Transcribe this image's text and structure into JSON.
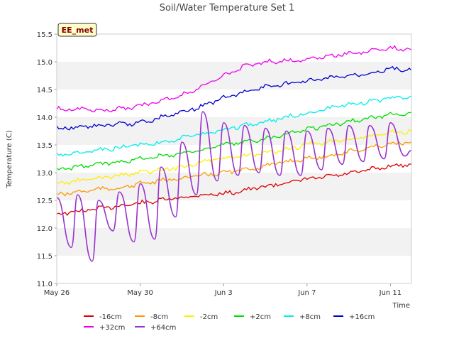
{
  "chart_data": {
    "type": "line",
    "title": "Soil/Water Temperature Set 1",
    "xlabel": "Time",
    "ylabel": "Temperature (C)",
    "ylim": [
      11.0,
      15.5
    ],
    "xlim_days": [
      "May 26",
      "Jun 13"
    ],
    "yticks": [
      11.0,
      11.5,
      12.0,
      12.5,
      13.0,
      13.5,
      14.0,
      14.5,
      15.0,
      15.5
    ],
    "ytick_labels": [
      "11.0",
      "11.5",
      "12.0",
      "12.5",
      "13.0",
      "13.5",
      "14.0",
      "14.5",
      "15.0",
      "15.5"
    ],
    "xticks": [
      "May 26",
      "May 30",
      "Jun 3",
      "Jun 7",
      "Jun 11"
    ],
    "site_label": "EE_met",
    "grid": "horizontal bands",
    "legend_placement": "bottom",
    "series": [
      {
        "name": "-16cm",
        "color": "#dd0000",
        "x": [
          "May 26",
          "May 27",
          "May 28",
          "May 29",
          "May 30",
          "May 31",
          "Jun 1",
          "Jun 2",
          "Jun 3",
          "Jun 4",
          "Jun 5",
          "Jun 6",
          "Jun 7",
          "Jun 8",
          "Jun 9",
          "Jun 10",
          "Jun 11",
          "Jun 12"
        ],
        "values": [
          12.25,
          12.3,
          12.35,
          12.4,
          12.45,
          12.5,
          12.55,
          12.6,
          12.62,
          12.68,
          12.75,
          12.82,
          12.88,
          12.93,
          12.98,
          13.05,
          13.12,
          13.15
        ]
      },
      {
        "name": "-8cm",
        "color": "#ff9900",
        "x": [
          "May 26",
          "May 27",
          "May 28",
          "May 29",
          "May 30",
          "May 31",
          "Jun 1",
          "Jun 2",
          "Jun 3",
          "Jun 4",
          "Jun 5",
          "Jun 6",
          "Jun 7",
          "Jun 8",
          "Jun 9",
          "Jun 10",
          "Jun 11",
          "Jun 12"
        ],
        "values": [
          12.6,
          12.65,
          12.7,
          12.72,
          12.8,
          12.85,
          12.9,
          12.95,
          13.0,
          13.05,
          13.12,
          13.2,
          13.25,
          13.3,
          13.38,
          13.45,
          13.52,
          13.55
        ]
      },
      {
        "name": "-2cm",
        "color": "#ffee00",
        "x": [
          "May 26",
          "May 27",
          "May 28",
          "May 29",
          "May 30",
          "May 31",
          "Jun 1",
          "Jun 2",
          "Jun 3",
          "Jun 4",
          "Jun 5",
          "Jun 6",
          "Jun 7",
          "Jun 8",
          "Jun 9",
          "Jun 10",
          "Jun 11",
          "Jun 12"
        ],
        "values": [
          12.8,
          12.85,
          12.9,
          12.95,
          13.0,
          13.05,
          13.1,
          13.2,
          13.25,
          13.3,
          13.35,
          13.42,
          13.5,
          13.55,
          13.6,
          13.65,
          13.72,
          13.75
        ]
      },
      {
        "name": "+2cm",
        "color": "#00dd00",
        "x": [
          "May 26",
          "May 27",
          "May 28",
          "May 29",
          "May 30",
          "May 31",
          "Jun 1",
          "Jun 2",
          "Jun 3",
          "Jun 4",
          "Jun 5",
          "Jun 6",
          "Jun 7",
          "Jun 8",
          "Jun 9",
          "Jun 10",
          "Jun 11",
          "Jun 12"
        ],
        "values": [
          13.05,
          13.1,
          13.15,
          13.2,
          13.25,
          13.3,
          13.35,
          13.42,
          13.5,
          13.55,
          13.62,
          13.7,
          13.78,
          13.85,
          13.92,
          13.98,
          14.05,
          14.08
        ]
      },
      {
        "name": "+8cm",
        "color": "#00eeee",
        "x": [
          "May 26",
          "May 27",
          "May 28",
          "May 29",
          "May 30",
          "May 31",
          "Jun 1",
          "Jun 2",
          "Jun 3",
          "Jun 4",
          "Jun 5",
          "Jun 6",
          "Jun 7",
          "Jun 8",
          "Jun 9",
          "Jun 10",
          "Jun 11",
          "Jun 12"
        ],
        "values": [
          13.32,
          13.35,
          13.4,
          13.45,
          13.5,
          13.55,
          13.62,
          13.7,
          13.78,
          13.85,
          13.92,
          14.0,
          14.08,
          14.15,
          14.22,
          14.28,
          14.35,
          14.38
        ]
      },
      {
        "name": "+16cm",
        "color": "#0000cc",
        "x": [
          "May 26",
          "May 27",
          "May 28",
          "May 29",
          "May 30",
          "May 31",
          "Jun 1",
          "Jun 2",
          "Jun 3",
          "Jun 4",
          "Jun 5",
          "Jun 6",
          "Jun 7",
          "Jun 8",
          "Jun 9",
          "Jun 10",
          "Jun 11",
          "Jun 12"
        ],
        "values": [
          13.8,
          13.82,
          13.85,
          13.87,
          13.9,
          14.0,
          14.1,
          14.2,
          14.35,
          14.45,
          14.55,
          14.6,
          14.65,
          14.7,
          14.75,
          14.8,
          14.88,
          14.85
        ]
      },
      {
        "name": "+32cm",
        "color": "#ee00ee",
        "x": [
          "May 26",
          "May 27",
          "May 28",
          "May 29",
          "May 30",
          "May 31",
          "Jun 1",
          "Jun 2",
          "Jun 3",
          "Jun 4",
          "Jun 5",
          "Jun 6",
          "Jun 7",
          "Jun 8",
          "Jun 9",
          "Jun 10",
          "Jun 11",
          "Jun 12"
        ],
        "values": [
          14.15,
          14.15,
          14.12,
          14.15,
          14.2,
          14.3,
          14.4,
          14.55,
          14.75,
          14.92,
          15.0,
          15.02,
          15.05,
          15.1,
          15.15,
          15.2,
          15.25,
          15.22
        ]
      },
      {
        "name": "+64cm",
        "color": "#9933cc",
        "x": [
          "May 26",
          "May 26.7",
          "May 27",
          "May 27.7",
          "May 28",
          "May 28.7",
          "May 29",
          "May 29.7",
          "May 30",
          "May 30.7",
          "May 31",
          "May 31.7",
          "Jun 1",
          "Jun 1.7",
          "Jun 2",
          "Jun 2.7",
          "Jun 3",
          "Jun 3.7",
          "Jun 4",
          "Jun 4.7",
          "Jun 5",
          "Jun 5.7",
          "Jun 6",
          "Jun 6.7",
          "Jun 7",
          "Jun 7.7",
          "Jun 8",
          "Jun 8.7",
          "Jun 9",
          "Jun 9.7",
          "Jun 10",
          "Jun 10.7",
          "Jun 11",
          "Jun 11.7",
          "Jun 12"
        ],
        "values": [
          12.55,
          11.65,
          12.6,
          11.4,
          12.5,
          11.95,
          12.65,
          11.75,
          12.8,
          11.8,
          13.1,
          12.2,
          13.55,
          12.6,
          14.1,
          12.85,
          13.9,
          12.95,
          13.85,
          13.0,
          13.8,
          12.95,
          13.75,
          12.95,
          13.75,
          13.05,
          13.8,
          13.15,
          13.85,
          13.2,
          13.85,
          13.25,
          13.9,
          13.3,
          13.4
        ]
      }
    ]
  }
}
